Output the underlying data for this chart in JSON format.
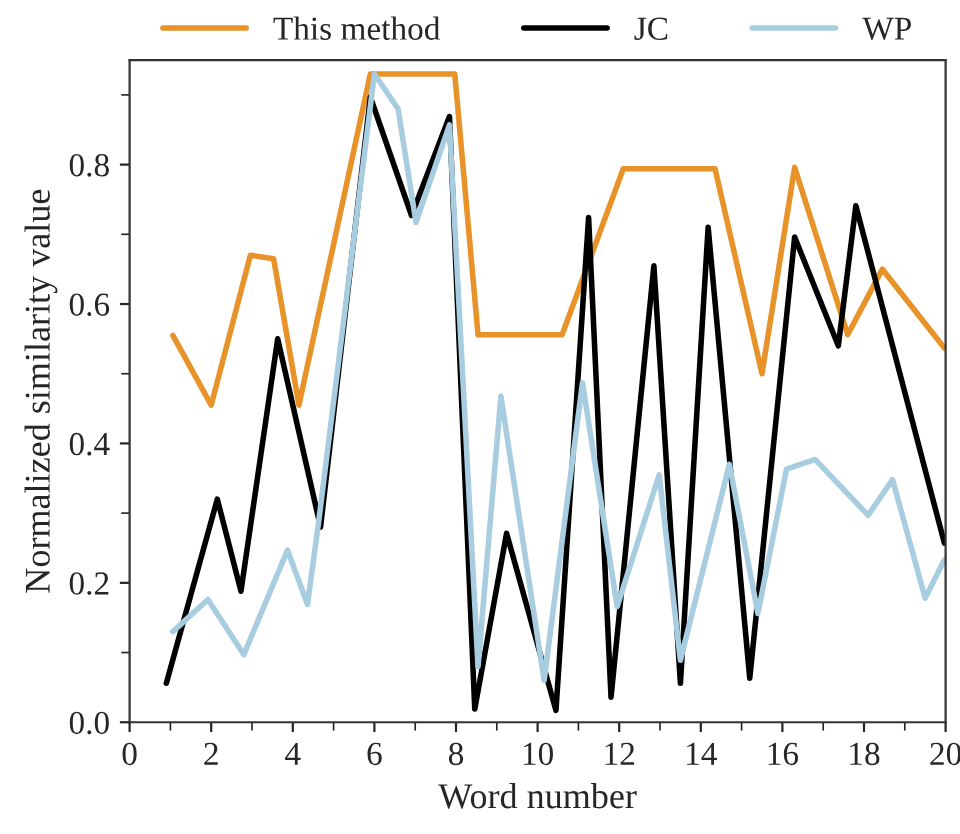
{
  "chart_data": {
    "type": "line",
    "xlabel": "Word number",
    "ylabel": "Normalized similarity value",
    "xlim": [
      0,
      20
    ],
    "xticks": [
      0,
      2,
      4,
      6,
      8,
      10,
      12,
      14,
      16,
      18,
      20
    ],
    "ylim": [
      0,
      0.95
    ],
    "yticks": [
      {
        "value": 0,
        "label": "0.0"
      },
      0.2,
      0.4,
      0.6,
      0.8
    ],
    "grid": false,
    "legend": "top",
    "marker": "none",
    "line_style": "solid",
    "series": [
      {
        "name": "This method",
        "color": "#e8922a",
        "x": [
          1.06,
          2.0,
          2.96,
          3.53,
          4.15,
          5.9,
          7.97,
          8.54,
          10.6,
          12.1,
          14.35,
          15.5,
          16.3,
          17.6,
          18.45,
          19.97
        ],
        "values": [
          0.555,
          0.455,
          0.67,
          0.665,
          0.455,
          0.93,
          0.93,
          0.556,
          0.556,
          0.794,
          0.794,
          0.5,
          0.796,
          0.556,
          0.65,
          0.537
        ]
      },
      {
        "name": "JC",
        "color": "#000000",
        "x": [
          0.9,
          2.15,
          2.73,
          3.63,
          4.68,
          5.9,
          6.91,
          7.84,
          8.46,
          9.24,
          10.45,
          11.25,
          11.8,
          12.85,
          13.5,
          14.18,
          15.2,
          16.3,
          17.37,
          17.8,
          19.97
        ],
        "values": [
          0.056,
          0.32,
          0.188,
          0.55,
          0.28,
          0.897,
          0.727,
          0.869,
          0.019,
          0.271,
          0.017,
          0.724,
          0.036,
          0.655,
          0.056,
          0.71,
          0.063,
          0.696,
          0.54,
          0.741,
          0.257
        ]
      },
      {
        "name": "WP",
        "color": "#a8cde0",
        "x": [
          1.06,
          1.92,
          2.8,
          3.87,
          4.36,
          4.63,
          6.0,
          6.58,
          7.02,
          7.84,
          8.54,
          9.1,
          10.16,
          11.1,
          11.95,
          12.98,
          13.5,
          14.7,
          15.4,
          16.1,
          16.8,
          18.1,
          18.7,
          19.5,
          19.97
        ],
        "values": [
          0.13,
          0.176,
          0.097,
          0.247,
          0.169,
          0.286,
          0.93,
          0.88,
          0.717,
          0.857,
          0.08,
          0.468,
          0.06,
          0.487,
          0.166,
          0.355,
          0.089,
          0.37,
          0.156,
          0.363,
          0.377,
          0.297,
          0.348,
          0.178,
          0.233
        ]
      }
    ]
  }
}
